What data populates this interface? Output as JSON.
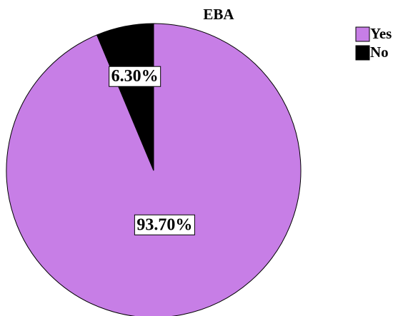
{
  "chart_data": {
    "type": "pie",
    "title": "EBA",
    "categories": [
      "Yes",
      "No"
    ],
    "values": [
      93.7,
      6.3
    ],
    "value_labels": [
      "93.70%",
      "6.30%"
    ],
    "colors": [
      "#c77ee6",
      "#000000"
    ],
    "legend": "upper right"
  }
}
